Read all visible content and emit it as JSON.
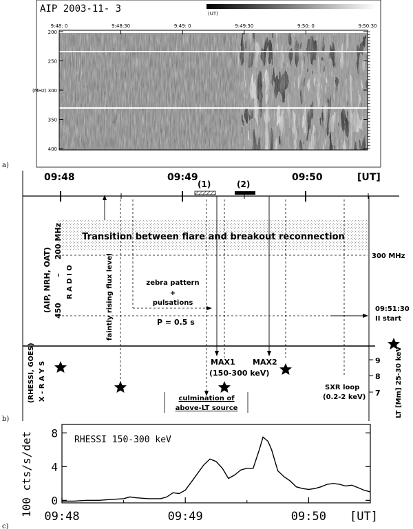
{
  "panel_a": {
    "panel_label": "a)",
    "title": "AIP  2003-11- 3",
    "colorbar_label": "(UT)",
    "time_ticks": [
      "9:48: 0",
      "9:48:30",
      "9:49: 0",
      "9:49:30",
      "9:50: 0",
      "9:50:30"
    ],
    "freq_ticks": [
      "200",
      "250",
      "(MHz) 300",
      "350",
      "400"
    ]
  },
  "panel_b": {
    "panel_label": "b)",
    "time_labels": [
      "09:48",
      "09:49",
      "09:50"
    ],
    "unit_label": "[UT]",
    "interval_labels": [
      "(1)",
      "(2)"
    ],
    "banner_text": "Transition between flare and breakout reconnection",
    "radio_axis": {
      "top": "200 MHz",
      "bottom": "450",
      "dash": "–",
      "source": "(AIP, NRH, OAT)",
      "name": "R A D I O"
    },
    "xray_axis": {
      "source": "(RHESSI, GOES)",
      "name": "X - R A Y S"
    },
    "lt_axis": {
      "label": "LT [Mm] 25-30 keV",
      "ticks": [
        "9",
        "8",
        "7"
      ]
    },
    "annotations": {
      "freq_300": "300 MHz",
      "flux_level": "faintly rising flux level",
      "zebra": "zebra pattern",
      "plus": "+",
      "pulsations": "pulsations",
      "period": "P = 0.5 s",
      "ii_time": "09:51:30",
      "ii_start": "II start",
      "max1": "MAX1",
      "max1_range": "(150-300 keV)",
      "max2": "MAX2",
      "sxr_loop": "SXR loop",
      "sxr_range": "(0.2-2 keV)",
      "culmination_1": "culmination of",
      "culmination_2": "above-LT source"
    }
  },
  "panel_c": {
    "panel_label": "c)",
    "chart_data": {
      "type": "line",
      "title": "RHESSI  150-300 keV",
      "ylabel": "100 cts/s/det",
      "xlabel": "[UT]",
      "x_tick_labels": [
        "09:48",
        "09:49",
        "09:50"
      ],
      "x_tick_minutes": [
        0,
        1,
        2
      ],
      "y_ticks": [
        0,
        4,
        8
      ],
      "xlim_minutes": [
        0,
        2.5
      ],
      "ylim": [
        -0.3,
        9
      ],
      "series": [
        {
          "x_minutes": [
            0,
            0.1,
            0.2,
            0.3,
            0.4,
            0.5,
            0.55,
            0.6,
            0.7,
            0.8,
            0.85,
            0.9,
            0.95,
            1.0,
            1.05,
            1.1,
            1.15,
            1.2,
            1.25,
            1.3,
            1.35,
            1.4,
            1.45,
            1.5,
            1.55,
            1.6,
            1.63,
            1.67,
            1.7,
            1.75,
            1.8,
            1.85,
            1.9,
            1.95,
            2.0,
            2.05,
            2.1,
            2.15,
            2.2,
            2.25,
            2.3,
            2.35,
            2.4,
            2.45,
            2.5
          ],
          "values": [
            -0.1,
            -0.1,
            0.0,
            0.0,
            0.1,
            0.2,
            0.4,
            0.3,
            0.2,
            0.2,
            0.4,
            0.9,
            0.8,
            1.2,
            2.2,
            3.2,
            4.2,
            4.9,
            4.6,
            3.8,
            2.6,
            3.0,
            3.6,
            3.8,
            3.8,
            6.0,
            7.5,
            7.0,
            6.0,
            3.5,
            2.8,
            2.3,
            1.6,
            1.4,
            1.3,
            1.4,
            1.6,
            1.9,
            2.0,
            1.9,
            1.7,
            1.8,
            1.5,
            1.2,
            1.0
          ]
        }
      ]
    }
  }
}
